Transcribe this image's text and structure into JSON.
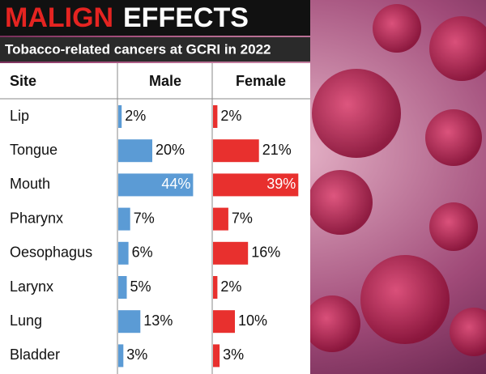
{
  "chart_data": {
    "type": "bar",
    "title_highlight": "MALIGN",
    "title_rest": "EFFECTS",
    "subtitle": "Tobacco-related cancers at GCRI in 2022",
    "category_header": "Site",
    "categories": [
      "Lip",
      "Tongue",
      "Mouth",
      "Pharynx",
      "Oesophagus",
      "Larynx",
      "Lung",
      "Bladder"
    ],
    "series": [
      {
        "name": "Male",
        "color": "#5b9bd5",
        "values": [
          2,
          20,
          44,
          7,
          6,
          5,
          13,
          3
        ],
        "value_labels": [
          "2%",
          "20%",
          "44%",
          "7%",
          "6%",
          "5%",
          "13%",
          "3%"
        ]
      },
      {
        "name": "Female",
        "color": "#e8302e",
        "values": [
          2,
          21,
          39,
          7,
          16,
          2,
          10,
          3
        ],
        "value_labels": [
          "2%",
          "21%",
          "39%",
          "7%",
          "16%",
          "2%",
          "10%",
          "3%"
        ]
      }
    ]
  }
}
